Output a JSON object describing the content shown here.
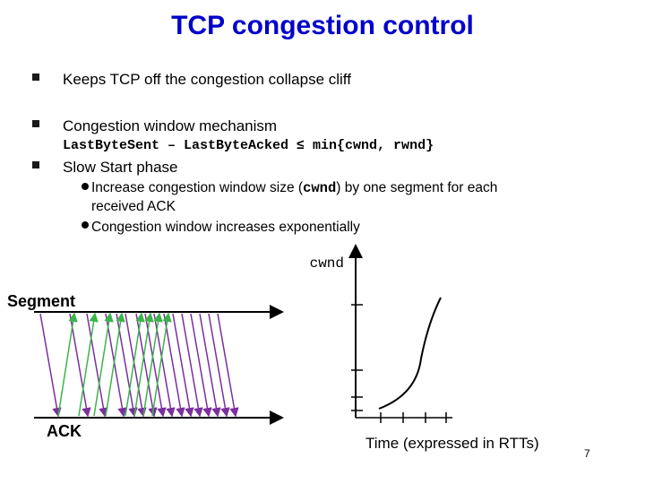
{
  "header": {
    "title": "TCP congestion control"
  },
  "bullets": [
    {
      "text": "Keeps TCP off the congestion collapse cliff"
    },
    {
      "text": "Congestion window mechanism",
      "code": "LastByteSent – LastByteAcked ≤ min{cwnd, rwnd}"
    },
    {
      "text": "Slow Start phase",
      "subbullets": [
        {
          "before": "Increase congestion window size (",
          "code": "cwnd",
          "after": ") by one segment for each",
          "line2": "received ACK"
        },
        {
          "before": "Congestion window increases exponentially"
        }
      ]
    }
  ],
  "diagram": {
    "segment_label": "Segment",
    "ack_label": "ACK"
  },
  "graph": {
    "y_label": "cwnd",
    "x_label": "Time (expressed in RTTs)"
  },
  "footer": {
    "page_number": "7"
  }
}
